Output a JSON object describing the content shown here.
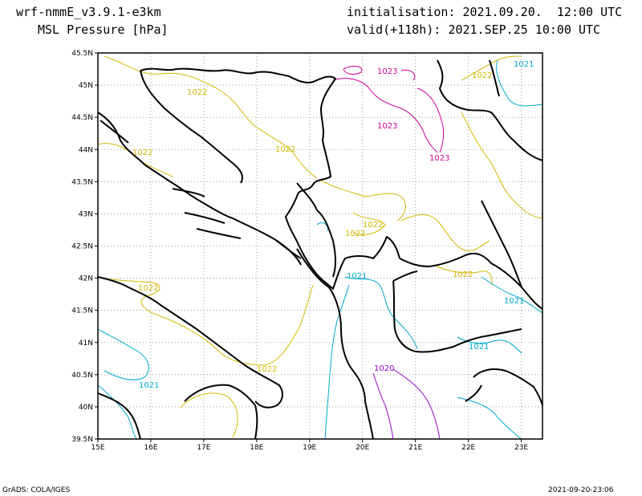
{
  "header": {
    "model": "wrf-nmmE_v3.9.1-e3km",
    "field": "MSL Pressure [hPa]",
    "init_label": "initialisation:",
    "init_value": "2021.09.20.  12:00 UTC",
    "valid_label": "valid(+118h):",
    "valid_value": "2021.SEP.25 10:00 UTC"
  },
  "map": {
    "lon_labels": [
      "15E",
      "16E",
      "17E",
      "18E",
      "19E",
      "20E",
      "21E",
      "22E",
      "23E"
    ],
    "lat_labels": [
      "45.5N",
      "45N",
      "44.5N",
      "44N",
      "43.5N",
      "43N",
      "42.5N",
      "42N",
      "41.5N",
      "41N",
      "40.5N",
      "40N",
      "39.5N"
    ],
    "contour_labels": [
      {
        "text": "1023",
        "color": "#cc0099"
      },
      {
        "text": "1023",
        "color": "#cc0099"
      },
      {
        "text": "1023",
        "color": "#cc0099"
      },
      {
        "text": "1022",
        "color": "#d4b800"
      },
      {
        "text": "1022",
        "color": "#d4b800"
      },
      {
        "text": "1022",
        "color": "#d4b800"
      },
      {
        "text": "1022",
        "color": "#d4b800"
      },
      {
        "text": "1022",
        "color": "#d4b800"
      },
      {
        "text": "1022",
        "color": "#d4b800"
      },
      {
        "text": "1022",
        "color": "#d4b800"
      },
      {
        "text": "1022",
        "color": "#d4b800"
      },
      {
        "text": "1022",
        "color": "#d4b800"
      },
      {
        "text": "1021",
        "color": "#00aacc"
      },
      {
        "text": "1021",
        "color": "#00aacc"
      },
      {
        "text": "1021",
        "color": "#00aacc"
      },
      {
        "text": "1021",
        "color": "#00aacc"
      },
      {
        "text": "1021",
        "color": "#00aacc"
      },
      {
        "text": "1020",
        "color": "#9900cc"
      }
    ],
    "colors": {
      "c1020": "#9900cc",
      "c1021": "#00aacc",
      "c1022": "#d4b800",
      "c1023": "#cc0099",
      "coast": "#000000",
      "grid": "#888888"
    }
  },
  "footer": {
    "credit": "GrADS: COLA/IGES",
    "timestamp": "2021-09-20-23:06"
  }
}
